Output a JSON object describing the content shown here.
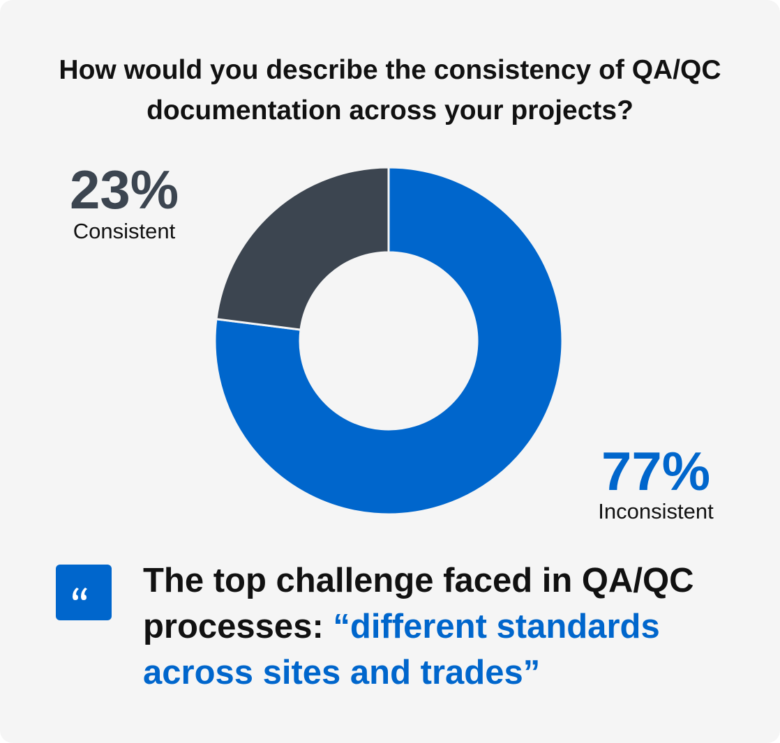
{
  "chart_data": {
    "type": "donut",
    "title": "How would you describe the consistency of QA/QC documentation across your projects?",
    "categories": [
      "Consistent",
      "Inconsistent"
    ],
    "values": [
      23,
      77
    ],
    "value_labels": [
      "23%",
      "77%"
    ],
    "colors": [
      "#3c4550",
      "#0066cc"
    ],
    "quote": {
      "text": "The top challenge faced in QA/QC processes:",
      "highlight": "“different standards across sites and trades”"
    }
  }
}
